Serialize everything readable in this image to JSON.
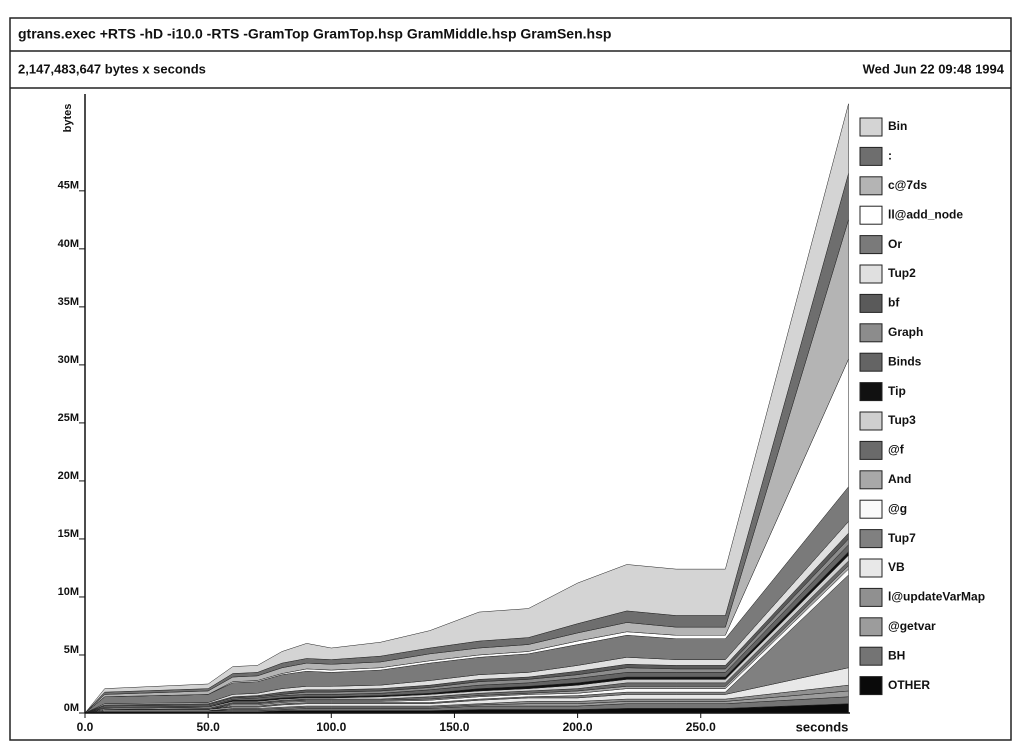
{
  "chart_data": {
    "type": "area",
    "title": "gtrans.exec +RTS -hD -i10.0 -RTS -GramTop GramTop.hsp GramMiddle.hsp GramSen.hsp",
    "subtitle": "2,147,483,647 bytes x seconds",
    "date": "Wed Jun 22 09:48 1994",
    "y_label": "bytes",
    "x_label": "seconds",
    "stacked": true,
    "xlim": [
      0,
      310.6
    ],
    "ylim": [
      0,
      53
    ],
    "xticks": [
      {
        "value": 0,
        "label": "0.0"
      },
      {
        "value": 50,
        "label": "50.0"
      },
      {
        "value": 100,
        "label": "100.0"
      },
      {
        "value": 150,
        "label": "150.0"
      },
      {
        "value": 200,
        "label": "200.0"
      },
      {
        "value": 250,
        "label": "250.0"
      }
    ],
    "yticks": [
      {
        "value": 0,
        "label": "0M"
      },
      {
        "value": 5,
        "label": "5M"
      },
      {
        "value": 10,
        "label": "10M"
      },
      {
        "value": 15,
        "label": "15M"
      },
      {
        "value": 20,
        "label": "20M"
      },
      {
        "value": 25,
        "label": "25M"
      },
      {
        "value": 30,
        "label": "30M"
      },
      {
        "value": 35,
        "label": "35M"
      },
      {
        "value": 40,
        "label": "40M"
      },
      {
        "value": 45,
        "label": "45M"
      }
    ],
    "x": [
      0,
      8,
      50,
      60,
      70,
      80,
      90,
      100,
      120,
      140,
      160,
      180,
      200,
      220,
      240,
      260,
      310
    ],
    "series": [
      {
        "name": "Bin",
        "color": "#d4d4d4",
        "values": [
          0,
          0.3,
          0.4,
          0.6,
          0.6,
          1,
          1.3,
          1,
          1.2,
          1.5,
          2.5,
          2.5,
          3.5,
          4,
          4,
          4,
          6
        ]
      },
      {
        "name": ":",
        "color": "#6e6e6e",
        "values": [
          0,
          0.2,
          0.2,
          0.3,
          0.3,
          0.4,
          0.4,
          0.4,
          0.5,
          0.5,
          0.6,
          0.6,
          0.8,
          1,
          1,
          1,
          4
        ]
      },
      {
        "name": "c@7ds",
        "color": "#b4b4b4",
        "values": [
          0,
          0.2,
          0.3,
          0.4,
          0.4,
          0.5,
          0.5,
          0.5,
          0.5,
          0.6,
          0.6,
          0.6,
          0.7,
          0.8,
          0.7,
          0.7,
          12
        ]
      },
      {
        "name": "ll@add_node",
        "color": "#ffffff",
        "values": [
          0,
          0,
          0,
          0.1,
          0.1,
          0.1,
          0.2,
          0.2,
          0.2,
          0.2,
          0.2,
          0.2,
          0.3,
          0.3,
          0.3,
          0.3,
          11
        ]
      },
      {
        "name": "Or",
        "color": "#7a7a7a",
        "values": [
          0,
          0.6,
          0.7,
          1,
          1,
          1.2,
          1.3,
          1.2,
          1.3,
          1.5,
          1.5,
          1.6,
          1.8,
          1.9,
          1.8,
          1.8,
          3
        ]
      },
      {
        "name": "Tup2",
        "color": "#e0e0e0",
        "values": [
          0,
          0.1,
          0.1,
          0.2,
          0.2,
          0.3,
          0.3,
          0.3,
          0.3,
          0.4,
          0.4,
          0.4,
          0.5,
          0.6,
          0.5,
          0.5,
          1
        ]
      },
      {
        "name": "bf",
        "color": "#5a5a5a",
        "values": [
          0,
          0.1,
          0.1,
          0.1,
          0.1,
          0.2,
          0.2,
          0.2,
          0.2,
          0.2,
          0.2,
          0.2,
          0.3,
          0.3,
          0.3,
          0.3,
          0.5
        ]
      },
      {
        "name": "Graph",
        "color": "#8c8c8c",
        "values": [
          0,
          0.1,
          0.1,
          0.1,
          0.1,
          0.1,
          0.2,
          0.2,
          0.2,
          0.2,
          0.3,
          0.3,
          0.3,
          0.4,
          0.3,
          0.3,
          0.5
        ]
      },
      {
        "name": "Binds",
        "color": "#646464",
        "values": [
          0,
          0.1,
          0.1,
          0.1,
          0.2,
          0.2,
          0.2,
          0.2,
          0.2,
          0.3,
          0.3,
          0.3,
          0.4,
          0.4,
          0.4,
          0.4,
          0.6
        ]
      },
      {
        "name": "Tip",
        "color": "#111111",
        "values": [
          0,
          0,
          0,
          0.1,
          0.1,
          0.1,
          0.1,
          0.1,
          0.1,
          0.1,
          0.2,
          0.2,
          0.2,
          0.2,
          0.2,
          0.2,
          0.3
        ]
      },
      {
        "name": "Tup3",
        "color": "#cfcfcf",
        "values": [
          0,
          0.1,
          0.1,
          0.1,
          0.1,
          0.1,
          0.1,
          0.1,
          0.2,
          0.2,
          0.2,
          0.2,
          0.3,
          0.3,
          0.3,
          0.3,
          0.5
        ]
      },
      {
        "name": "@f",
        "color": "#6a6a6a",
        "values": [
          0,
          0,
          0.1,
          0.1,
          0.1,
          0.1,
          0.1,
          0.1,
          0.1,
          0.2,
          0.2,
          0.2,
          0.2,
          0.3,
          0.3,
          0.3,
          0.4
        ]
      },
      {
        "name": "And",
        "color": "#a8a8a8",
        "values": [
          0,
          0,
          0,
          0.1,
          0.1,
          0.1,
          0.1,
          0.1,
          0.1,
          0.1,
          0.1,
          0.1,
          0.2,
          0.2,
          0.2,
          0.2,
          0.3
        ]
      },
      {
        "name": "@g",
        "color": "#fafafa",
        "values": [
          0,
          0,
          0,
          0.1,
          0.1,
          0.1,
          0.1,
          0.1,
          0.1,
          0.2,
          0.2,
          0.2,
          0.2,
          0.3,
          0.3,
          0.3,
          0.5
        ]
      },
      {
        "name": "Tup7",
        "color": "#808080",
        "values": [
          0,
          0,
          0,
          0.1,
          0.1,
          0.1,
          0.1,
          0.1,
          0.1,
          0.1,
          0.1,
          0.1,
          0.2,
          0.2,
          0.2,
          0.2,
          8
        ]
      },
      {
        "name": "VB",
        "color": "#e8e8e8",
        "values": [
          0,
          0.1,
          0.1,
          0.1,
          0.1,
          0.2,
          0.2,
          0.2,
          0.2,
          0.2,
          0.3,
          0.3,
          0.3,
          0.4,
          0.4,
          0.4,
          1.5
        ]
      },
      {
        "name": "l@updateVarMap",
        "color": "#909090",
        "values": [
          0,
          0,
          0,
          0.1,
          0.1,
          0.1,
          0.1,
          0.1,
          0.1,
          0.1,
          0.1,
          0.2,
          0.2,
          0.2,
          0.2,
          0.2,
          0.5
        ]
      },
      {
        "name": "@getvar",
        "color": "#9c9c9c",
        "values": [
          0,
          0,
          0,
          0.1,
          0.1,
          0.1,
          0.1,
          0.1,
          0.1,
          0.1,
          0.1,
          0.2,
          0.2,
          0.2,
          0.2,
          0.2,
          0.5
        ]
      },
      {
        "name": "BH",
        "color": "#747474",
        "values": [
          0,
          0.1,
          0.1,
          0.1,
          0.1,
          0.1,
          0.2,
          0.2,
          0.2,
          0.2,
          0.3,
          0.3,
          0.3,
          0.4,
          0.4,
          0.4,
          0.6
        ]
      },
      {
        "name": "OTHER",
        "color": "#0a0a0a",
        "values": [
          0,
          0.1,
          0.1,
          0.1,
          0.1,
          0.2,
          0.2,
          0.2,
          0.2,
          0.2,
          0.3,
          0.3,
          0.3,
          0.4,
          0.4,
          0.4,
          0.8
        ]
      }
    ]
  }
}
